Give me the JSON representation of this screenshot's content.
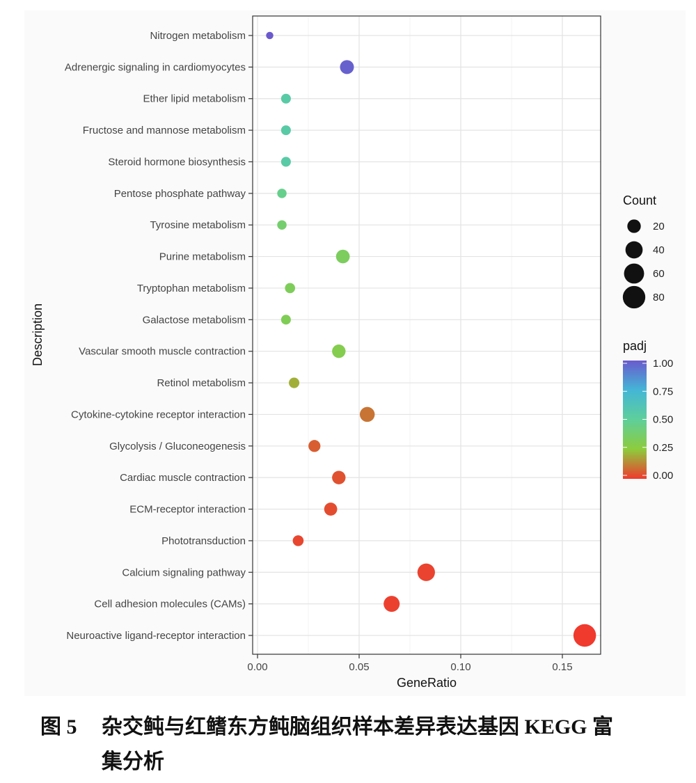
{
  "chart_data": {
    "type": "scatter",
    "title": "",
    "xlabel": "GeneRatio",
    "ylabel": "Description",
    "xlim": [
      0,
      0.17
    ],
    "x_ticks": [
      "0.00",
      "0.05",
      "0.10",
      "0.15"
    ],
    "x_tick_values": [
      0,
      0.05,
      0.1,
      0.15
    ],
    "grid": true,
    "legend_position": "right",
    "size_legend": {
      "title": "Count",
      "values": [
        20,
        40,
        60,
        80
      ],
      "labels": [
        "20",
        "40",
        "60",
        "80"
      ]
    },
    "color_legend": {
      "title": "padj",
      "values": [
        1.0,
        0.75,
        0.5,
        0.25,
        0.0
      ],
      "labels": [
        "1.00",
        "0.75",
        "0.50",
        "0.25",
        "0.00"
      ],
      "colors": [
        "#6a5acd",
        "#44b6d6",
        "#5ecf9a",
        "#8dcc3c",
        "#f03a2e"
      ]
    },
    "points": [
      {
        "description": "Nitrogen metabolism",
        "gene_ratio": 0.006,
        "count": 2,
        "padj": 1.0
      },
      {
        "description": "Adrenergic signaling in cardiomyocytes",
        "gene_ratio": 0.044,
        "count": 22,
        "padj": 0.98
      },
      {
        "description": "Ether lipid metabolism",
        "gene_ratio": 0.014,
        "count": 7,
        "padj": 0.55
      },
      {
        "description": "Fructose and mannose metabolism",
        "gene_ratio": 0.014,
        "count": 7,
        "padj": 0.55
      },
      {
        "description": "Steroid hormone biosynthesis",
        "gene_ratio": 0.014,
        "count": 7,
        "padj": 0.55
      },
      {
        "description": "Pentose phosphate pathway",
        "gene_ratio": 0.012,
        "count": 6,
        "padj": 0.46
      },
      {
        "description": "Tyrosine metabolism",
        "gene_ratio": 0.012,
        "count": 6,
        "padj": 0.38
      },
      {
        "description": "Purine metabolism",
        "gene_ratio": 0.042,
        "count": 21,
        "padj": 0.34
      },
      {
        "description": "Tryptophan metabolism",
        "gene_ratio": 0.016,
        "count": 8,
        "padj": 0.33
      },
      {
        "description": "Galactose metabolism",
        "gene_ratio": 0.014,
        "count": 7,
        "padj": 0.32
      },
      {
        "description": "Vascular smooth muscle contraction",
        "gene_ratio": 0.04,
        "count": 20,
        "padj": 0.3
      },
      {
        "description": "Retinol metabolism",
        "gene_ratio": 0.018,
        "count": 9,
        "padj": 0.2
      },
      {
        "description": "Cytokine-cytokine receptor interaction",
        "gene_ratio": 0.054,
        "count": 27,
        "padj": 0.1
      },
      {
        "description": "Glycolysis / Gluconeogenesis",
        "gene_ratio": 0.028,
        "count": 14,
        "padj": 0.06
      },
      {
        "description": "Cardiac muscle contraction",
        "gene_ratio": 0.04,
        "count": 20,
        "padj": 0.04
      },
      {
        "description": "ECM-receptor interaction",
        "gene_ratio": 0.036,
        "count": 18,
        "padj": 0.03
      },
      {
        "description": "Phototransduction",
        "gene_ratio": 0.02,
        "count": 10,
        "padj": 0.02
      },
      {
        "description": "Calcium signaling pathway",
        "gene_ratio": 0.083,
        "count": 42,
        "padj": 0.015
      },
      {
        "description": "Cell adhesion molecules (CAMs)",
        "gene_ratio": 0.066,
        "count": 33,
        "padj": 0.01
      },
      {
        "description": "Neuroactive ligand-receptor interaction",
        "gene_ratio": 0.161,
        "count": 81,
        "padj": 0.0
      }
    ]
  },
  "caption": {
    "label": "图 5",
    "text_line1": "杂交鲀与红鳍东方鲀脑组织样本差异表达基因 KEGG 富",
    "text_line2": "集分析"
  }
}
